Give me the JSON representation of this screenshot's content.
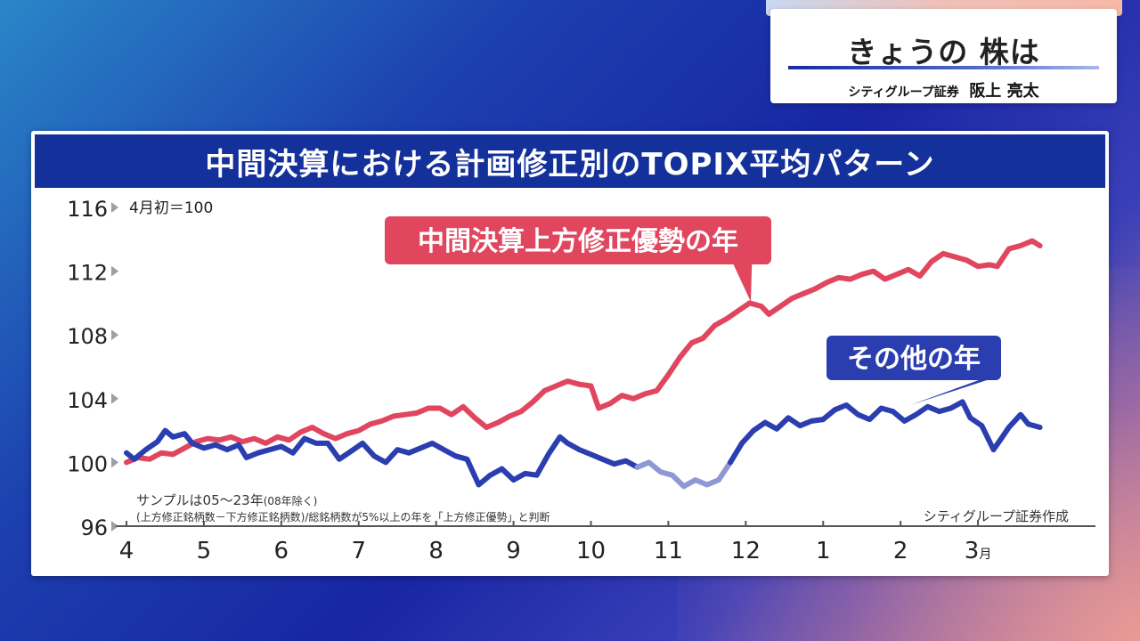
{
  "program": {
    "title": "きょうの 株は",
    "guest_company": "シティグループ証券",
    "guest_name": "阪上 亮太"
  },
  "chart_data": {
    "type": "line",
    "title": "中間決算における計画修正別のTOPIX平均パターン",
    "ylim": [
      96,
      116
    ],
    "yticks": [
      "116",
      "112",
      "108",
      "104",
      "100",
      "96"
    ],
    "y_unit_note": "4月初＝100",
    "x_tick_labels": [
      "4",
      "5",
      "6",
      "7",
      "8",
      "9",
      "10",
      "11",
      "12",
      "1",
      "2",
      "3"
    ],
    "x_last_suffix": "月",
    "note_line1": "サンプルは05～23年",
    "note_line1_small": "(08年除く)",
    "note_line2": "(上方修正銘柄数－下方修正銘柄数)/総銘柄数が5%以上の年を「上方修正優勢」と判断",
    "source": "シティグループ証券作成",
    "colors": {
      "upward": "#e0465e",
      "other": "#2b3eb0",
      "other_faded": "#8e98d4"
    },
    "series": [
      {
        "name": "中間決算上方修正優勢の年",
        "key": "upward",
        "points": [
          [
            4.0,
            100.0
          ],
          [
            4.15,
            100.3
          ],
          [
            4.3,
            100.2
          ],
          [
            4.45,
            100.6
          ],
          [
            4.6,
            100.5
          ],
          [
            4.75,
            100.9
          ],
          [
            4.9,
            101.3
          ],
          [
            5.05,
            101.5
          ],
          [
            5.2,
            101.4
          ],
          [
            5.35,
            101.6
          ],
          [
            5.5,
            101.3
          ],
          [
            5.65,
            101.5
          ],
          [
            5.8,
            101.2
          ],
          [
            5.95,
            101.6
          ],
          [
            6.1,
            101.4
          ],
          [
            6.25,
            101.9
          ],
          [
            6.4,
            102.2
          ],
          [
            6.55,
            101.8
          ],
          [
            6.7,
            101.5
          ],
          [
            6.85,
            101.8
          ],
          [
            7.0,
            102.0
          ],
          [
            7.15,
            102.4
          ],
          [
            7.3,
            102.6
          ],
          [
            7.45,
            102.9
          ],
          [
            7.6,
            103.0
          ],
          [
            7.75,
            103.1
          ],
          [
            7.9,
            103.4
          ],
          [
            8.05,
            103.4
          ],
          [
            8.2,
            103.0
          ],
          [
            8.35,
            103.5
          ],
          [
            8.5,
            102.8
          ],
          [
            8.65,
            102.2
          ],
          [
            8.8,
            102.5
          ],
          [
            8.95,
            102.9
          ],
          [
            9.1,
            103.2
          ],
          [
            9.25,
            103.8
          ],
          [
            9.4,
            104.5
          ],
          [
            9.55,
            104.8
          ],
          [
            9.7,
            105.1
          ],
          [
            9.85,
            104.9
          ],
          [
            10.0,
            104.8
          ],
          [
            10.1,
            103.4
          ],
          [
            10.25,
            103.7
          ],
          [
            10.4,
            104.2
          ],
          [
            10.55,
            104.0
          ],
          [
            10.7,
            104.3
          ],
          [
            10.85,
            104.5
          ],
          [
            11.0,
            105.5
          ],
          [
            11.15,
            106.6
          ],
          [
            11.3,
            107.5
          ],
          [
            11.45,
            107.8
          ],
          [
            11.6,
            108.6
          ],
          [
            11.75,
            109.0
          ],
          [
            11.9,
            109.5
          ],
          [
            12.05,
            110.0
          ],
          [
            12.2,
            109.8
          ],
          [
            12.3,
            109.3
          ],
          [
            12.45,
            109.8
          ],
          [
            12.6,
            110.3
          ],
          [
            12.75,
            110.6
          ],
          [
            12.9,
            110.9
          ],
          [
            13.05,
            111.3
          ],
          [
            13.2,
            111.6
          ],
          [
            13.35,
            111.5
          ],
          [
            13.5,
            111.8
          ],
          [
            13.65,
            112.0
          ],
          [
            13.8,
            111.5
          ],
          [
            13.95,
            111.8
          ],
          [
            14.1,
            112.1
          ],
          [
            14.25,
            111.7
          ],
          [
            14.4,
            112.6
          ],
          [
            14.55,
            113.1
          ],
          [
            14.7,
            112.9
          ],
          [
            14.85,
            112.7
          ],
          [
            15.0,
            112.3
          ],
          [
            15.15,
            112.4
          ],
          [
            15.25,
            112.3
          ],
          [
            15.4,
            113.4
          ],
          [
            15.55,
            113.6
          ],
          [
            15.7,
            113.9
          ],
          [
            15.8,
            113.6
          ]
        ]
      },
      {
        "name": "その他の年",
        "key": "other",
        "points": [
          [
            4.0,
            100.6
          ],
          [
            4.1,
            100.2
          ],
          [
            4.25,
            100.8
          ],
          [
            4.4,
            101.3
          ],
          [
            4.5,
            102.0
          ],
          [
            4.6,
            101.6
          ],
          [
            4.75,
            101.8
          ],
          [
            4.85,
            101.2
          ],
          [
            5.0,
            100.9
          ],
          [
            5.15,
            101.1
          ],
          [
            5.3,
            100.8
          ],
          [
            5.45,
            101.1
          ],
          [
            5.55,
            100.3
          ],
          [
            5.7,
            100.6
          ],
          [
            5.85,
            100.8
          ],
          [
            6.0,
            101.0
          ],
          [
            6.15,
            100.6
          ],
          [
            6.3,
            101.5
          ],
          [
            6.45,
            101.2
          ],
          [
            6.6,
            101.2
          ],
          [
            6.75,
            100.2
          ],
          [
            6.9,
            100.7
          ],
          [
            7.05,
            101.2
          ],
          [
            7.2,
            100.4
          ],
          [
            7.35,
            100.0
          ],
          [
            7.5,
            100.8
          ],
          [
            7.65,
            100.6
          ],
          [
            7.8,
            100.9
          ],
          [
            7.95,
            101.2
          ],
          [
            8.1,
            100.8
          ],
          [
            8.25,
            100.4
          ],
          [
            8.4,
            100.2
          ],
          [
            8.55,
            98.6
          ],
          [
            8.7,
            99.2
          ],
          [
            8.85,
            99.6
          ],
          [
            9.0,
            98.9
          ],
          [
            9.15,
            99.3
          ],
          [
            9.3,
            99.2
          ],
          [
            9.45,
            100.5
          ],
          [
            9.6,
            101.6
          ],
          [
            9.7,
            101.2
          ],
          [
            9.85,
            100.8
          ],
          [
            10.0,
            100.5
          ],
          [
            10.15,
            100.2
          ],
          [
            10.3,
            99.9
          ],
          [
            10.45,
            100.1
          ],
          [
            10.6,
            99.7
          ],
          [
            10.75,
            100.0
          ],
          [
            10.9,
            99.4
          ],
          [
            11.05,
            99.2
          ],
          [
            11.2,
            98.5
          ],
          [
            11.35,
            98.9
          ],
          [
            11.5,
            98.6
          ],
          [
            11.65,
            98.9
          ],
          [
            11.8,
            100.0
          ],
          [
            11.95,
            101.2
          ],
          [
            12.1,
            102.0
          ],
          [
            12.25,
            102.5
          ],
          [
            12.4,
            102.1
          ],
          [
            12.55,
            102.8
          ],
          [
            12.7,
            102.3
          ],
          [
            12.85,
            102.6
          ],
          [
            13.0,
            102.7
          ],
          [
            13.15,
            103.3
          ],
          [
            13.3,
            103.6
          ],
          [
            13.45,
            103.0
          ],
          [
            13.6,
            102.7
          ],
          [
            13.75,
            103.4
          ],
          [
            13.9,
            103.2
          ],
          [
            14.05,
            102.6
          ],
          [
            14.2,
            103.0
          ],
          [
            14.35,
            103.5
          ],
          [
            14.5,
            103.2
          ],
          [
            14.65,
            103.4
          ],
          [
            14.8,
            103.8
          ],
          [
            14.9,
            102.8
          ],
          [
            15.05,
            102.3
          ],
          [
            15.2,
            100.8
          ],
          [
            15.3,
            101.5
          ],
          [
            15.4,
            102.2
          ],
          [
            15.55,
            103.0
          ],
          [
            15.65,
            102.4
          ],
          [
            15.8,
            102.2
          ]
        ],
        "faded_range": [
          10.65,
          11.85
        ]
      }
    ],
    "annotations": [
      {
        "text": "中間決算上方修正優勢の年",
        "series": "upward",
        "box_color": "#e0465e"
      },
      {
        "text": "その他の年",
        "series": "other",
        "box_color": "#2b3eb0"
      }
    ]
  }
}
